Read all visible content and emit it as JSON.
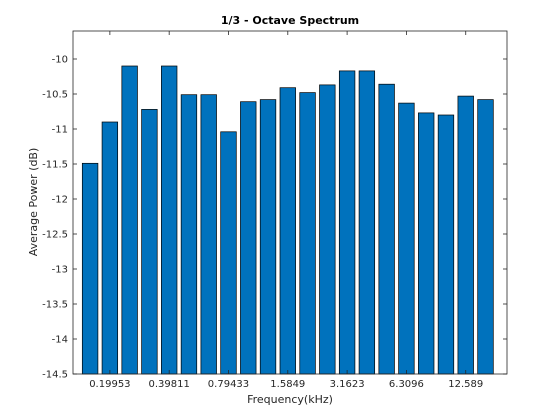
{
  "chart_data": {
    "type": "bar",
    "title": "1/3 - Octave Spectrum",
    "xlabel": "Frequency(kHz)",
    "ylabel": "Average Power (dB)",
    "ylim": [
      -14.5,
      -9.6
    ],
    "yticks": [
      "-10",
      "-10.5",
      "-11",
      "-11.5",
      "-12",
      "-12.5",
      "-13",
      "-13.5",
      "-14",
      "-14.5"
    ],
    "ytick_values": [
      -10,
      -10.5,
      -11,
      -11.5,
      -12,
      -12.5,
      -13,
      -13.5,
      -14,
      -14.5
    ],
    "xtick_labels": [
      {
        "index": 1,
        "label": "0.19953"
      },
      {
        "index": 4,
        "label": "0.39811"
      },
      {
        "index": 7,
        "label": "0.79433"
      },
      {
        "index": 10,
        "label": "1.5849"
      },
      {
        "index": 13,
        "label": "3.1623"
      },
      {
        "index": 16,
        "label": "6.3096"
      },
      {
        "index": 19,
        "label": "12.589"
      }
    ],
    "bar_count": 21,
    "values": [
      -11.49,
      -10.9,
      -10.1,
      -10.72,
      -10.1,
      -10.51,
      -10.51,
      -11.04,
      -10.61,
      -10.58,
      -10.41,
      -10.48,
      -10.37,
      -10.17,
      -10.17,
      -10.36,
      -10.63,
      -10.77,
      -10.8,
      -10.53,
      -10.58
    ],
    "bar_color": "#0072bd",
    "grid": false,
    "box": true
  }
}
